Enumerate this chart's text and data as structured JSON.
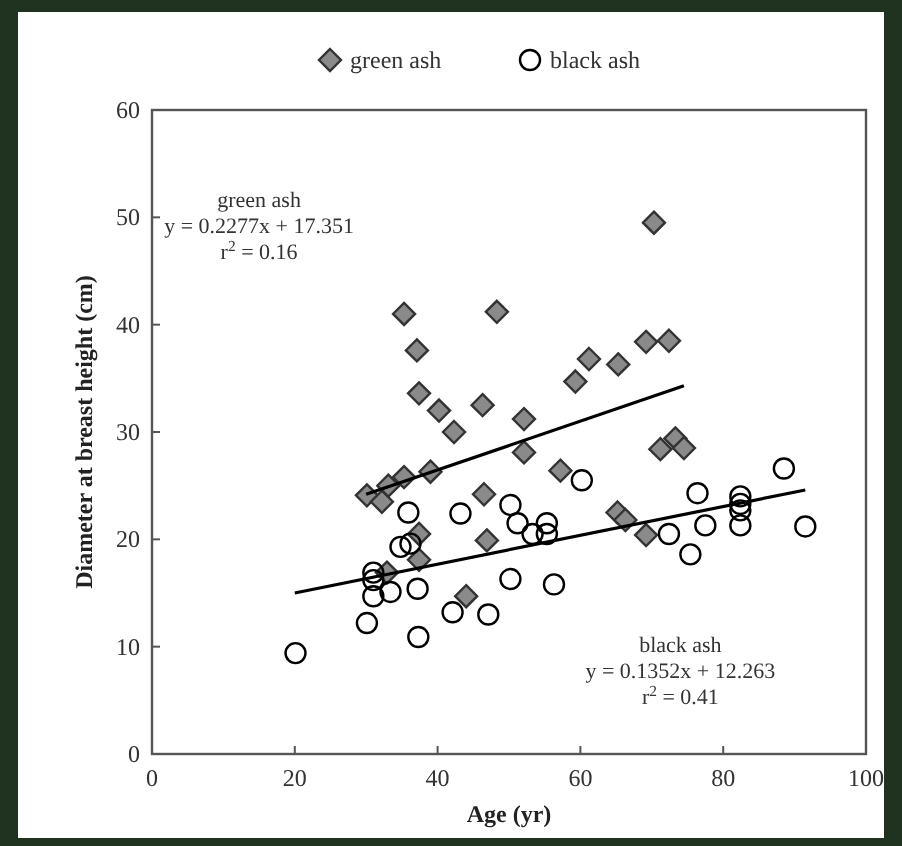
{
  "chart_data": {
    "type": "scatter",
    "xlabel": "Age (yr)",
    "ylabel": "Diameter at breast height (cm)",
    "xlim": [
      0,
      100
    ],
    "xticks": [
      0,
      20,
      40,
      60,
      80,
      100
    ],
    "ylim": [
      0,
      60
    ],
    "yticks": [
      0,
      10,
      20,
      30,
      40,
      50,
      60
    ],
    "legend": "top",
    "grid": false,
    "annotations": [
      "green ash",
      "y = 0.2277x + 17.351",
      "r$^{2}$ = 0.16",
      "black ash",
      "y = 0.1352x + 12.263",
      "r$^{2}$ = 0.41"
    ],
    "series": [
      {
        "name": "green ash",
        "marker": "diamond",
        "color": "#8a8a8a",
        "x": [
          35.3,
          37.1,
          37.4,
          40.2,
          42.3,
          46.3,
          48.3,
          70.3,
          52.1,
          59.3,
          61.2,
          65.3,
          69.2,
          72.4,
          52.1,
          57.2,
          71.2,
          73.3,
          74.5,
          46.5,
          46.9,
          65.2,
          66.3,
          69.2,
          30.1,
          32.2,
          33.1,
          35.3,
          39.0,
          37.4,
          37.4,
          32.9,
          44.0
        ],
        "values": [
          41.0,
          37.6,
          33.6,
          32.0,
          30.0,
          32.5,
          41.2,
          49.5,
          31.2,
          34.7,
          36.8,
          36.3,
          38.4,
          38.5,
          28.1,
          26.4,
          28.4,
          29.4,
          28.5,
          24.2,
          19.9,
          22.5,
          21.8,
          20.4,
          24.1,
          23.5,
          25.0,
          25.8,
          26.3,
          20.5,
          18.1,
          16.9,
          14.7
        ]
      },
      {
        "name": "black ash",
        "marker": "circle",
        "color": "#000000",
        "x": [
          20.1,
          30.1,
          31.0,
          31.0,
          31.0,
          33.4,
          34.8,
          35.9,
          36.2,
          37.2,
          37.3,
          42.1,
          43.2,
          47.1,
          50.2,
          50.2,
          51.2,
          53.3,
          55.3,
          55.3,
          56.3,
          60.2,
          72.4,
          75.4,
          76.4,
          77.5,
          82.4,
          82.4,
          82.4,
          82.4,
          88.5,
          91.5
        ],
        "values": [
          9.4,
          12.2,
          14.7,
          16.9,
          16.2,
          15.1,
          19.3,
          22.5,
          19.6,
          15.4,
          10.9,
          13.2,
          22.4,
          13.0,
          23.2,
          16.3,
          21.5,
          20.5,
          21.5,
          20.5,
          15.8,
          25.5,
          20.5,
          18.6,
          24.3,
          21.3,
          24.0,
          23.3,
          22.7,
          21.3,
          26.6,
          21.2
        ]
      },
      {
        "type": "line",
        "color": "#000000",
        "x": [
          30,
          74.5
        ],
        "values": [
          24.2,
          34.3
        ]
      },
      {
        "type": "line",
        "color": "#000000",
        "x": [
          20,
          91.5
        ],
        "values": [
          15.0,
          24.6
        ]
      }
    ]
  }
}
